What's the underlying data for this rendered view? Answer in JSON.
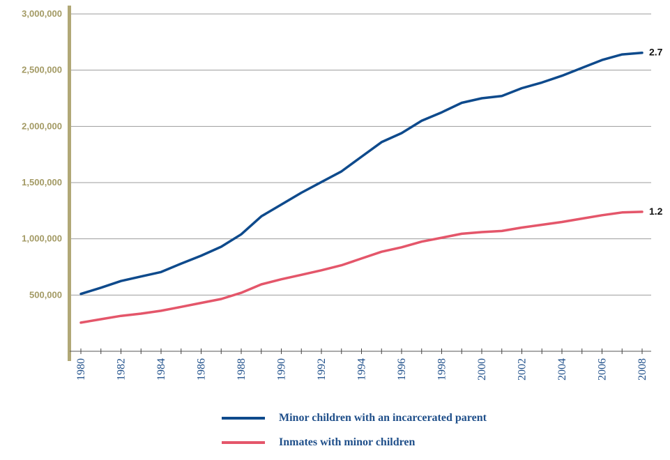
{
  "chart_data": {
    "type": "line",
    "x": [
      1980,
      1981,
      1982,
      1983,
      1984,
      1985,
      1986,
      1987,
      1988,
      1989,
      1990,
      1991,
      1992,
      1993,
      1994,
      1995,
      1996,
      1997,
      1998,
      1999,
      2000,
      2001,
      2002,
      2003,
      2004,
      2005,
      2006,
      2007,
      2008
    ],
    "x_tick_labels": [
      "1980",
      "1982",
      "1984",
      "1986",
      "1988",
      "1990",
      "1992",
      "1994",
      "1996",
      "1998",
      "2000",
      "2002",
      "2004",
      "2006",
      "2008"
    ],
    "ylim": [
      0,
      3000000
    ],
    "y_ticks": [
      500000,
      1000000,
      1500000,
      2000000,
      2500000,
      3000000
    ],
    "y_tick_labels": [
      "500,000",
      "1,000,000",
      "1,500,000",
      "2,000,000",
      "2,500,000",
      "3,000,000"
    ],
    "grid": "horizontal",
    "legend_position": "bottom",
    "series": [
      {
        "name": "Minor children with an incarcerated parent",
        "color": "#0e4a8c",
        "end_label": "2.7",
        "values": [
          510000,
          565000,
          625000,
          665000,
          705000,
          780000,
          850000,
          930000,
          1040000,
          1200000,
          1305000,
          1410000,
          1505000,
          1600000,
          1730000,
          1860000,
          1940000,
          2050000,
          2125000,
          2210000,
          2250000,
          2270000,
          2340000,
          2390000,
          2450000,
          2520000,
          2590000,
          2640000,
          2655000
        ]
      },
      {
        "name": "Inmates with minor children",
        "color": "#e4566a",
        "end_label": "1.2",
        "values": [
          255000,
          285000,
          315000,
          335000,
          360000,
          395000,
          430000,
          465000,
          520000,
          595000,
          640000,
          680000,
          720000,
          765000,
          825000,
          885000,
          925000,
          975000,
          1010000,
          1045000,
          1060000,
          1070000,
          1100000,
          1125000,
          1150000,
          1180000,
          1210000,
          1235000,
          1240000
        ]
      }
    ],
    "axis_color": "#b1a877",
    "grid_color": "#9b9b9b",
    "tick_label_color": "#a39a64",
    "x_label_color": "#1f4f8a"
  }
}
